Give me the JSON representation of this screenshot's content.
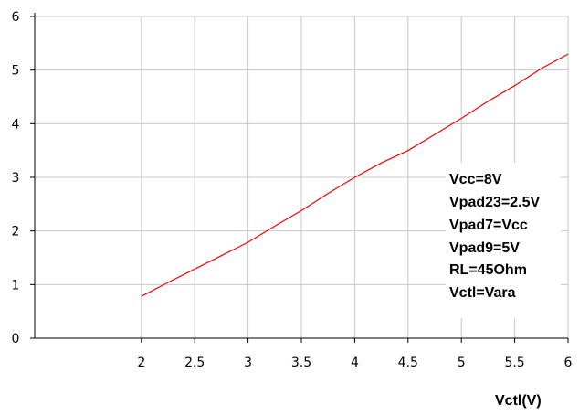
{
  "chart_data": {
    "type": "line",
    "title": "",
    "xlabel": "Vctl(V)",
    "ylabel": "",
    "xlim": [
      1,
      6
    ],
    "ylim": [
      0,
      6
    ],
    "x_ticks": [
      2,
      2.5,
      3,
      3.5,
      4,
      4.5,
      5,
      5.5,
      6
    ],
    "x_tick_labels": [
      "2",
      "2.5",
      "3",
      "3.5",
      "4",
      "4.5",
      "5",
      "5.5",
      "6"
    ],
    "y_ticks": [
      0,
      1,
      2,
      3,
      4,
      5,
      6
    ],
    "y_tick_labels": [
      "0",
      "1",
      "2",
      "3",
      "4",
      "5",
      "6"
    ],
    "grid": true,
    "legend": "none",
    "annotations": [
      "Vcc=8V",
      "Vpad23=2.5V",
      "Vpad7=Vcc",
      "Vpad9=5V",
      "RL=45Ohm",
      "Vctl=Vara"
    ],
    "series": [
      {
        "color": "#ff0000",
        "x": [
          2,
          2.25,
          2.5,
          2.75,
          3,
          3.25,
          3.5,
          3.75,
          4,
          4.25,
          4.5,
          4.75,
          5,
          5.25,
          5.5,
          5.75,
          6
        ],
        "y": [
          0.78,
          1.04,
          1.29,
          1.54,
          1.79,
          2.09,
          2.38,
          2.7,
          3.0,
          3.27,
          3.5,
          3.8,
          4.1,
          4.42,
          4.71,
          5.03,
          5.3
        ]
      }
    ]
  }
}
